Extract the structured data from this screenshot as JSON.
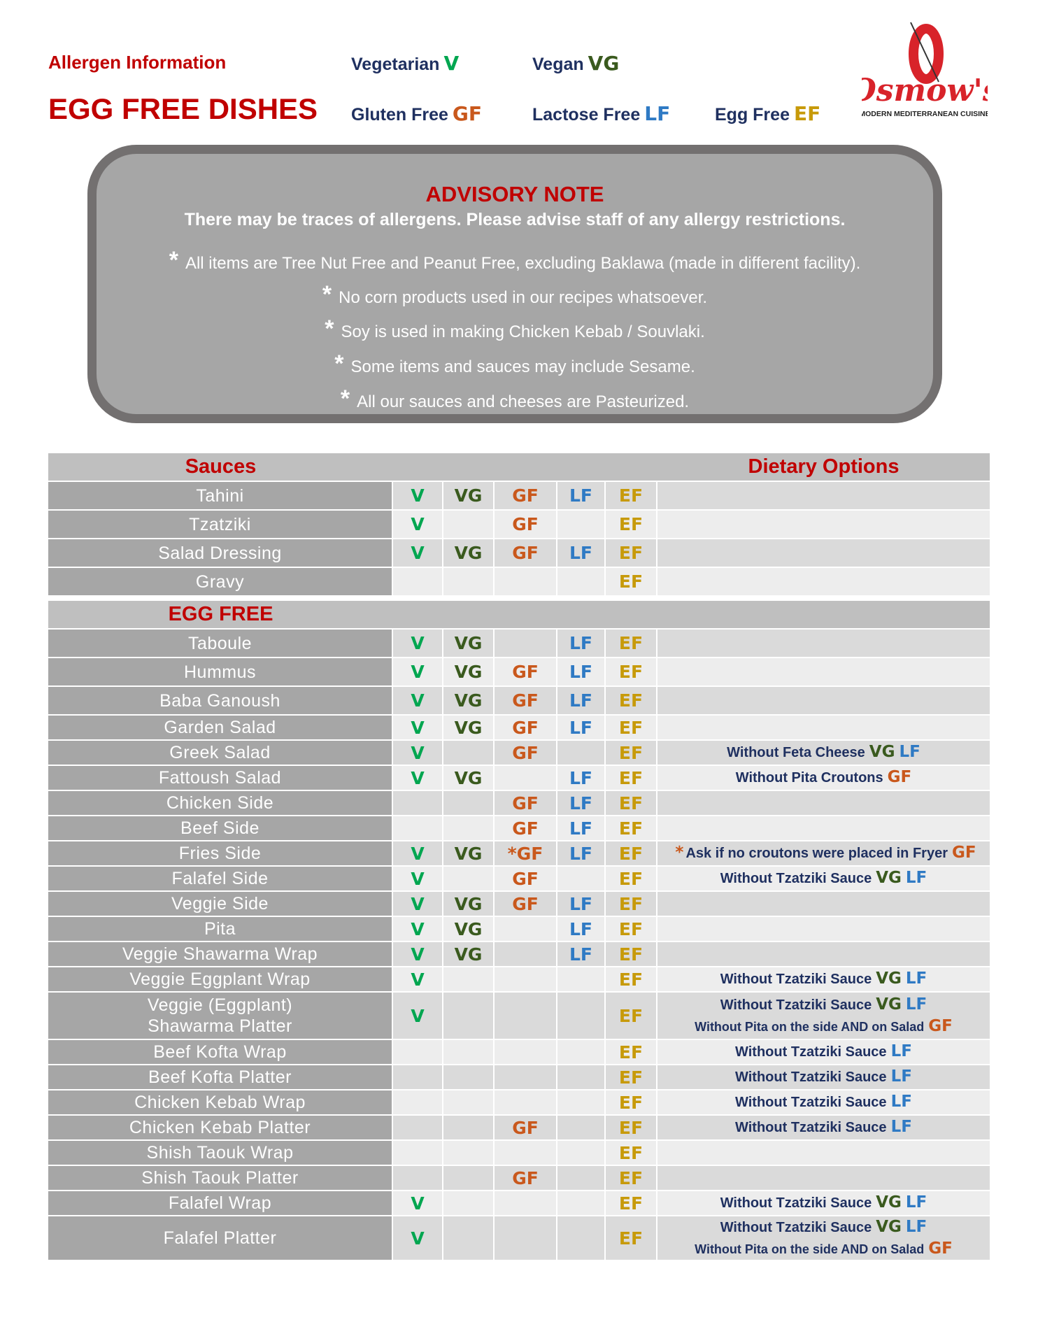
{
  "header": {
    "allergen_info": "Allergen Information",
    "title": "EGG FREE DISHES",
    "legend": [
      {
        "label": "Vegetarian",
        "tag": "V"
      },
      {
        "label": "Vegan",
        "tag": "VG"
      },
      {
        "label": "Gluten Free",
        "tag": "GF"
      },
      {
        "label": "Lactose Free",
        "tag": "LF"
      },
      {
        "label": "Egg Free",
        "tag": "EF"
      }
    ]
  },
  "logo": {
    "name": "Osmow's",
    "tagline": "MODERN MEDITERRANEAN CUISINE"
  },
  "advisory": {
    "title": "ADVISORY NOTE",
    "subtitle": "There may be traces of allergens. Please advise staff of any allergy restrictions.",
    "bullet": "*",
    "notes": [
      "All items are Tree Nut Free and Peanut Free, excluding Baklawa (made in different facility).",
      "No corn products used in our recipes whatsoever.",
      "Soy is used in making Chicken Kebab / Souvlaki.",
      "Some items and sauces may include Sesame.",
      "All our sauces and cheeses are Pasteurized."
    ]
  },
  "colors": {
    "V": "#00a650",
    "VG": "#3a5a1e",
    "GF": "#c9581c",
    "LF": "#2f7ac4",
    "EF": "#c79a0a",
    "heading": "#c00000",
    "text": "#1f3060"
  },
  "sections": [
    {
      "title": "Sauces",
      "options_title": "Dietary Options",
      "rows": [
        {
          "name": "Tahini",
          "V": "V",
          "VG": "VG",
          "GF": "GF",
          "LF": "LF",
          "EF": "EF",
          "options": []
        },
        {
          "name": "Tzatziki",
          "V": "V",
          "GF": "GF",
          "EF": "EF",
          "options": []
        },
        {
          "name": "Salad Dressing",
          "V": "V",
          "VG": "VG",
          "GF": "GF",
          "LF": "LF",
          "EF": "EF",
          "options": []
        },
        {
          "name": "Gravy",
          "EF": "EF",
          "options": []
        }
      ]
    },
    {
      "title": "EGG FREE",
      "rows": [
        {
          "name": "Taboule",
          "V": "V",
          "VG": "VG",
          "LF": "LF",
          "EF": "EF",
          "options": []
        },
        {
          "name": "Hummus",
          "V": "V",
          "VG": "VG",
          "GF": "GF",
          "LF": "LF",
          "EF": "EF",
          "options": []
        },
        {
          "name": "Baba Ganoush",
          "V": "V",
          "VG": "VG",
          "GF": "GF",
          "LF": "LF",
          "EF": "EF",
          "options": []
        },
        {
          "name": "Garden Salad",
          "V": "V",
          "VG": "VG",
          "GF": "GF",
          "LF": "LF",
          "EF": "EF",
          "options": []
        },
        {
          "name": "Greek Salad",
          "V": "V",
          "GF": "GF",
          "EF": "EF",
          "options": [
            {
              "text": "Without Feta Cheese",
              "tags": [
                "VG",
                "LF"
              ]
            }
          ]
        },
        {
          "name": "Fattoush Salad",
          "V": "V",
          "VG": "VG",
          "LF": "LF",
          "EF": "EF",
          "options": [
            {
              "text": "Without Pita Croutons",
              "tags": [
                "GF"
              ]
            }
          ]
        },
        {
          "name": "Chicken Side",
          "GF": "GF",
          "LF": "LF",
          "EF": "EF",
          "options": []
        },
        {
          "name": "Beef Side",
          "GF": "GF",
          "LF": "LF",
          "EF": "EF",
          "options": []
        },
        {
          "name": "Fries Side",
          "V": "V",
          "VG": "VG",
          "GF": "*GF",
          "LF": "LF",
          "EF": "EF",
          "options": [
            {
              "prefix": "*",
              "text": "Ask if no croutons were placed in Fryer",
              "tags": [
                "GF"
              ]
            }
          ]
        },
        {
          "name": "Falafel Side",
          "V": "V",
          "GF": "GF",
          "EF": "EF",
          "options": [
            {
              "text": "Without Tzatziki Sauce",
              "tags": [
                "VG",
                "LF"
              ]
            }
          ]
        },
        {
          "name": "Veggie Side",
          "V": "V",
          "VG": "VG",
          "GF": "GF",
          "LF": "LF",
          "EF": "EF",
          "options": []
        },
        {
          "name": "Pita",
          "V": "V",
          "VG": "VG",
          "LF": "LF",
          "EF": "EF",
          "options": []
        },
        {
          "name": "Veggie Shawarma Wrap",
          "V": "V",
          "VG": "VG",
          "LF": "LF",
          "EF": "EF",
          "options": []
        },
        {
          "name": "Veggie Eggplant Wrap",
          "V": "V",
          "EF": "EF",
          "options": [
            {
              "text": "Without Tzatziki Sauce",
              "tags": [
                "VG",
                "LF"
              ]
            }
          ]
        },
        {
          "name": "Veggie (Eggplant)\nShawarma Platter",
          "V": "V",
          "EF": "EF",
          "options": [
            {
              "text": "Without Tzatziki Sauce",
              "tags": [
                "VG",
                "LF"
              ]
            },
            {
              "text": "Without Pita on the side AND on Salad",
              "tags": [
                "GF"
              ],
              "small": true
            }
          ]
        },
        {
          "name": "Beef Kofta Wrap",
          "EF": "EF",
          "options": [
            {
              "text": "Without Tzatziki Sauce",
              "tags": [
                "LF"
              ]
            }
          ]
        },
        {
          "name": "Beef Kofta Platter",
          "EF": "EF",
          "options": [
            {
              "text": "Without Tzatziki Sauce",
              "tags": [
                "LF"
              ]
            }
          ]
        },
        {
          "name": "Chicken Kebab Wrap",
          "EF": "EF",
          "options": [
            {
              "text": "Without Tzatziki Sauce",
              "tags": [
                "LF"
              ]
            }
          ]
        },
        {
          "name": "Chicken Kebab Platter",
          "GF": "GF",
          "EF": "EF",
          "options": [
            {
              "text": "Without Tzatziki Sauce",
              "tags": [
                "LF"
              ]
            }
          ]
        },
        {
          "name": "Shish Taouk Wrap",
          "EF": "EF",
          "options": []
        },
        {
          "name": "Shish Taouk Platter",
          "GF": "GF",
          "EF": "EF",
          "options": []
        },
        {
          "name": "Falafel Wrap",
          "V": "V",
          "EF": "EF",
          "options": [
            {
              "text": "Without Tzatziki Sauce",
              "tags": [
                "VG",
                "LF"
              ]
            }
          ]
        },
        {
          "name": "Falafel Platter",
          "V": "V",
          "EF": "EF",
          "options": [
            {
              "text": "Without Tzatziki Sauce",
              "tags": [
                "VG",
                "LF"
              ]
            },
            {
              "text": "Without Pita on the side AND on Salad",
              "tags": [
                "GF"
              ],
              "small": true
            }
          ]
        }
      ]
    }
  ]
}
